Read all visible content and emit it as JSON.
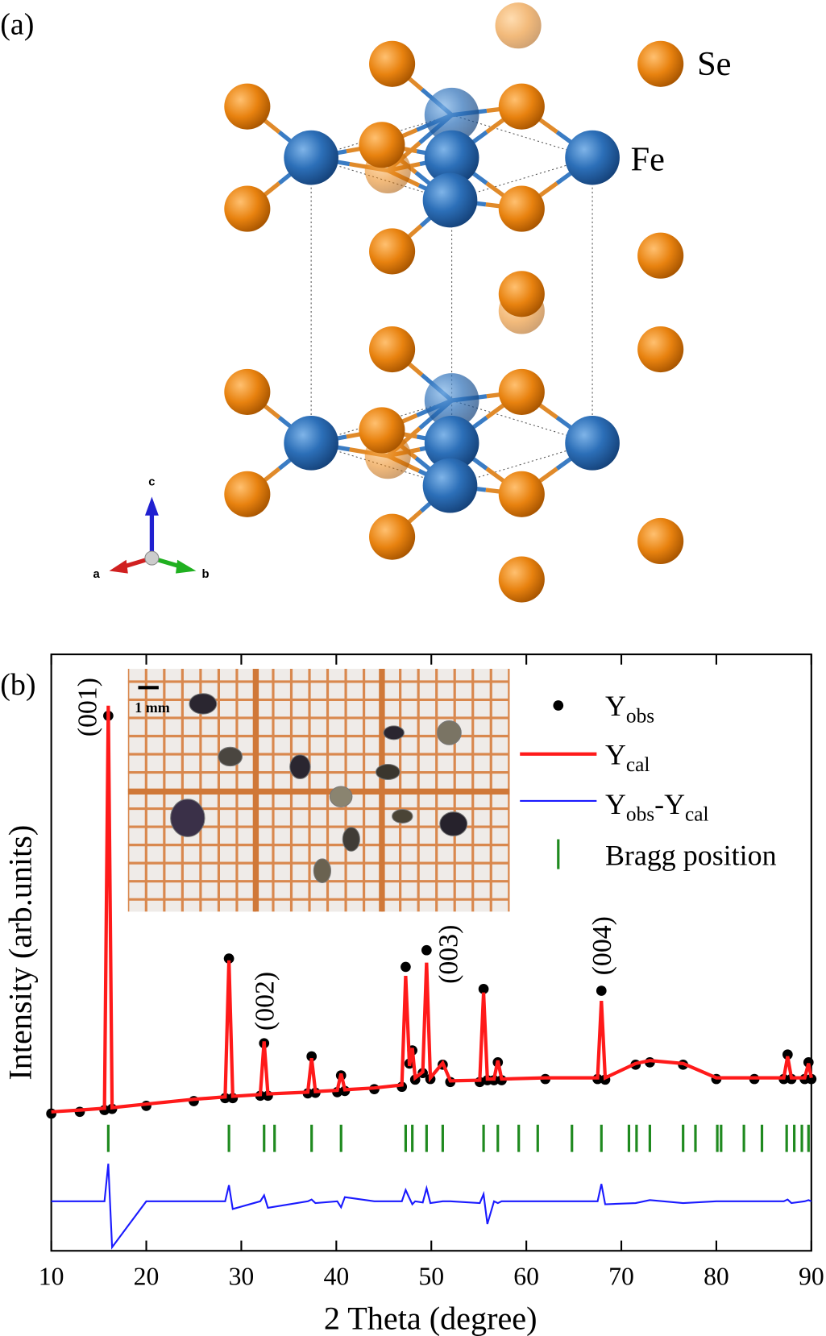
{
  "panel_a": {
    "label": "(a)",
    "atoms": [
      "Se",
      "Fe"
    ],
    "axes": [
      "a",
      "b",
      "c"
    ]
  },
  "chart_data": {
    "type": "xrd",
    "panel_label": "(b)",
    "xlabel": "2 Theta (degree)",
    "ylabel": "Intensity (arb.units)",
    "xlim": [
      10,
      90
    ],
    "xticks": [
      10,
      20,
      30,
      40,
      50,
      60,
      70,
      80,
      90
    ],
    "ylim": [
      0,
      100
    ],
    "x": [
      10,
      13,
      15.6,
      16.0,
      16.4,
      20,
      25,
      28.3,
      28.7,
      29.1,
      32.0,
      32.4,
      32.8,
      37.0,
      37.4,
      37.8,
      40.1,
      40.5,
      40.9,
      44,
      46.9,
      47.3,
      47.7,
      48.0,
      48.3,
      49.1,
      49.5,
      49.9,
      51.2,
      52,
      55.1,
      55.5,
      55.9,
      56.6,
      57.0,
      57.4,
      62,
      67.5,
      67.9,
      68.3,
      71.5,
      73.0,
      76.5,
      80,
      84,
      87.1,
      87.5,
      87.9,
      89.3,
      89.7,
      90
    ],
    "series": [
      {
        "name_parts": [
          {
            "text": "Y"
          },
          {
            "text": "obs",
            "sub": true
          }
        ],
        "color": "#000000",
        "values": [
          23.0,
          23.3,
          23.6,
          89.7,
          23.8,
          24.3,
          25.1,
          25.6,
          49.0,
          25.6,
          26.0,
          34.8,
          26.0,
          26.4,
          32.6,
          26.5,
          26.6,
          29.4,
          26.8,
          27.1,
          27.5,
          47.6,
          31.4,
          33.6,
          28.7,
          29.8,
          50.4,
          28.8,
          31.2,
          28.3,
          28.3,
          43.9,
          28.6,
          28.6,
          31.6,
          28.6,
          28.8,
          28.8,
          43.6,
          28.7,
          31.2,
          31.6,
          31.2,
          28.8,
          28.8,
          28.8,
          32.9,
          28.8,
          28.8,
          31.6,
          28.8
        ]
      },
      {
        "name_parts": [
          {
            "text": "Y"
          },
          {
            "text": "cal",
            "sub": true
          }
        ],
        "color": "#ff1a1a",
        "values": [
          23.3,
          23.6,
          23.9,
          91.4,
          24,
          24.6,
          25.4,
          25.8,
          48.7,
          25.9,
          26.2,
          35.1,
          26.3,
          26.6,
          32.3,
          26.7,
          26.9,
          29.7,
          27,
          27.3,
          27.8,
          46.1,
          31,
          34,
          29,
          30,
          48.3,
          29,
          31.5,
          28.5,
          28.6,
          43.3,
          28.8,
          28.8,
          31.9,
          28.8,
          29,
          29,
          41.9,
          29,
          31.4,
          31.9,
          31.4,
          29,
          29,
          29,
          32.6,
          29,
          29,
          31.4,
          29
        ]
      },
      {
        "name_parts": [
          {
            "text": "Y"
          },
          {
            "text": "obs",
            "sub": true
          },
          {
            "text": "-Y"
          },
          {
            "text": "cal",
            "sub": true
          }
        ],
        "color": "#1a1aff",
        "values": [
          8.3,
          8.3,
          8.3,
          14.6,
          0.6,
          8.3,
          8.3,
          8.3,
          11.0,
          7.0,
          8.3,
          9.3,
          7.2,
          8.3,
          8.6,
          8.0,
          8.3,
          7.3,
          9.0,
          8.3,
          8.3,
          10.2,
          8.8,
          7.8,
          8.3,
          8.1,
          10.5,
          8.0,
          8.3,
          8.3,
          8.0,
          9.5,
          4.5,
          8.3,
          8.0,
          8.3,
          8.3,
          8.3,
          11.2,
          7.8,
          8.0,
          8.5,
          8.0,
          8.3,
          8.3,
          8.3,
          8.6,
          8.0,
          8.3,
          8.5,
          8.3
        ]
      }
    ],
    "bragg": {
      "name": "Bragg position",
      "color": "#1f8a1f",
      "positions": [
        16.0,
        28.7,
        32.4,
        33.5,
        37.4,
        40.5,
        47.3,
        48.0,
        49.5,
        51.2,
        55.5,
        57.0,
        59.2,
        61.2,
        64.8,
        67.9,
        70.8,
        71.6,
        73.0,
        76.5,
        77.8,
        80.1,
        80.5,
        82.9,
        84.8,
        87.4,
        88.2,
        89.0,
        89.7
      ]
    },
    "annotations": [
      {
        "text": "(001)",
        "x": 16.0
      },
      {
        "text": "(002)",
        "x": 32.4
      },
      {
        "text": "(003)",
        "x": 49.5
      },
      {
        "text": "(004)",
        "x": 67.9
      }
    ],
    "inset": {
      "scale_label": "1 mm"
    }
  }
}
